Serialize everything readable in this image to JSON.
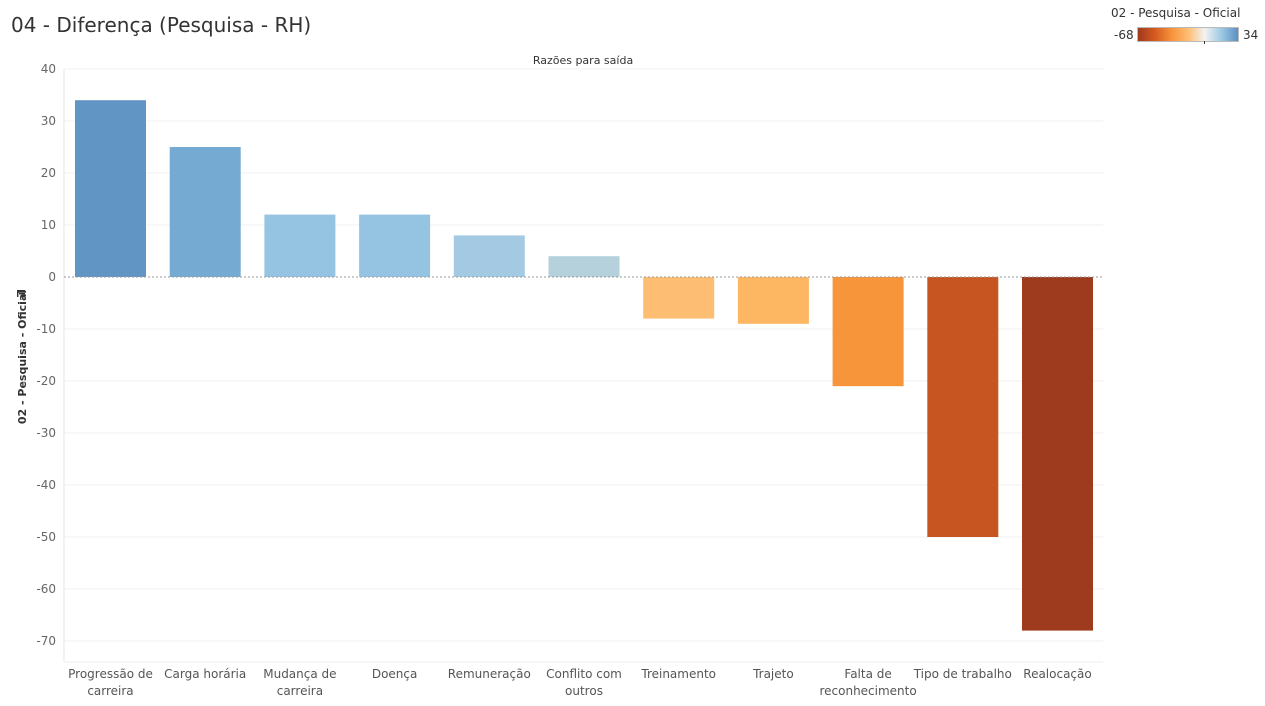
{
  "page": {
    "title": "04 - Diferença (Pesquisa - RH)"
  },
  "legend": {
    "title": "02 - Pesquisa - Oficial",
    "min_label": "-68",
    "max_label": "34",
    "colors": [
      "#9e3a1f",
      "#d4591f",
      "#f7923a",
      "#fdbd70",
      "#f2f2f2",
      "#9cc9e3",
      "#5b8fc1"
    ]
  },
  "chart_data": {
    "type": "bar",
    "title": "Razões para saída",
    "ylabel": "02 - Pesquisa - Oficial",
    "ylim": [
      -73,
      41
    ],
    "yticks": [
      40,
      30,
      20,
      10,
      0,
      -10,
      -20,
      -30,
      -40,
      -50,
      -60,
      -70
    ],
    "categories": [
      [
        "Progressão de",
        "carreira"
      ],
      [
        "Carga horária"
      ],
      [
        "Mudança de",
        "carreira"
      ],
      [
        "Doença"
      ],
      [
        "Remuneração"
      ],
      [
        "Conflito com",
        "outros"
      ],
      [
        "Treinamento"
      ],
      [
        "Trajeto"
      ],
      [
        "Falta de",
        "reconhecimento"
      ],
      [
        "Tipo de trabalho"
      ],
      [
        "Realocação"
      ]
    ],
    "values": [
      34,
      25,
      12,
      12,
      8,
      4,
      -8,
      -9,
      -21,
      -50,
      -68
    ],
    "colors": [
      "#6195c4",
      "#75aad3",
      "#94c4e1",
      "#94c4e1",
      "#a3cae2",
      "#b5d1db",
      "#fdbe74",
      "#fdb662",
      "#f7953a",
      "#c75522",
      "#9e3b1f"
    ]
  }
}
